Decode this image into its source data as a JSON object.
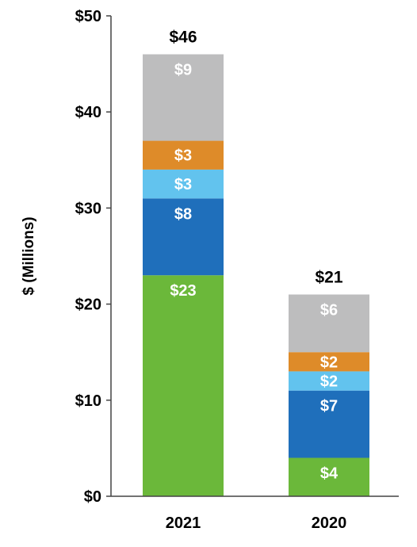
{
  "chart_data": {
    "type": "bar",
    "stacked": true,
    "categories": [
      "2021",
      "2020"
    ],
    "ylabel": "$ (Millions)",
    "ylim": [
      0,
      50
    ],
    "yticks": [
      {
        "value": 0,
        "label": "$0"
      },
      {
        "value": 10,
        "label": "$10"
      },
      {
        "value": 20,
        "label": "$20"
      },
      {
        "value": 30,
        "label": "$30"
      },
      {
        "value": 40,
        "label": "$40"
      },
      {
        "value": 50,
        "label": "$50"
      }
    ],
    "series": [
      {
        "color": "#6bb83a",
        "values": [
          23,
          4
        ],
        "labels": [
          "$23",
          "$4"
        ]
      },
      {
        "color": "#1f6fbb",
        "values": [
          8,
          7
        ],
        "labels": [
          "$8",
          "$7"
        ]
      },
      {
        "color": "#62c3ee",
        "values": [
          3,
          2
        ],
        "labels": [
          "$3",
          "$2"
        ]
      },
      {
        "color": "#de8b29",
        "values": [
          3,
          2
        ],
        "labels": [
          "$3",
          "$2"
        ]
      },
      {
        "color": "#bdbdbe",
        "values": [
          9,
          6
        ],
        "labels": [
          "$9",
          "$6"
        ]
      }
    ],
    "totals": [
      {
        "value": 46,
        "label": "$46"
      },
      {
        "value": 21,
        "label": "$21"
      }
    ],
    "grid": false,
    "legend": "none"
  }
}
